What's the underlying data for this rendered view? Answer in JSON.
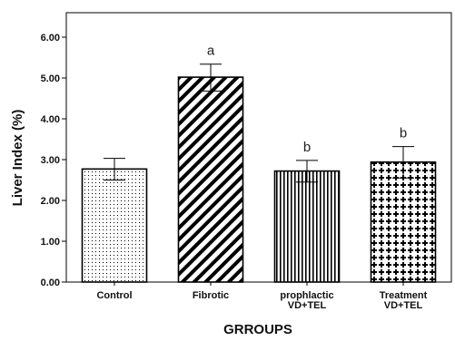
{
  "chart_data": {
    "type": "bar",
    "categories": [
      [
        "Control"
      ],
      [
        "Fibrotic"
      ],
      [
        "prophlactic",
        "VD+TEL"
      ],
      [
        "Treatment",
        "VD+TEL"
      ]
    ],
    "values": [
      2.77,
      5.02,
      2.72,
      2.94
    ],
    "error_low": [
      2.5,
      4.68,
      2.45,
      2.55
    ],
    "error_high": [
      3.03,
      5.34,
      2.98,
      3.32
    ],
    "annotations": [
      "",
      "a",
      "b",
      "b"
    ],
    "patterns": [
      "dots",
      "diagonal-thick",
      "vertical-lines",
      "cross-hatch"
    ],
    "ylabel": "Liver Index (%)",
    "xlabel": "GRROUPS",
    "ylim": [
      0,
      6.6
    ],
    "yticks": [
      0,
      1,
      2,
      3,
      4,
      5,
      6
    ],
    "ytick_labels": [
      "0.00",
      "1.00",
      "2.00",
      "3.00",
      "4.00",
      "5.00",
      "6.00"
    ],
    "grid": false,
    "colors": {
      "bar_stroke": "#000000",
      "pattern": "#000000",
      "background": "#ffffff"
    }
  }
}
